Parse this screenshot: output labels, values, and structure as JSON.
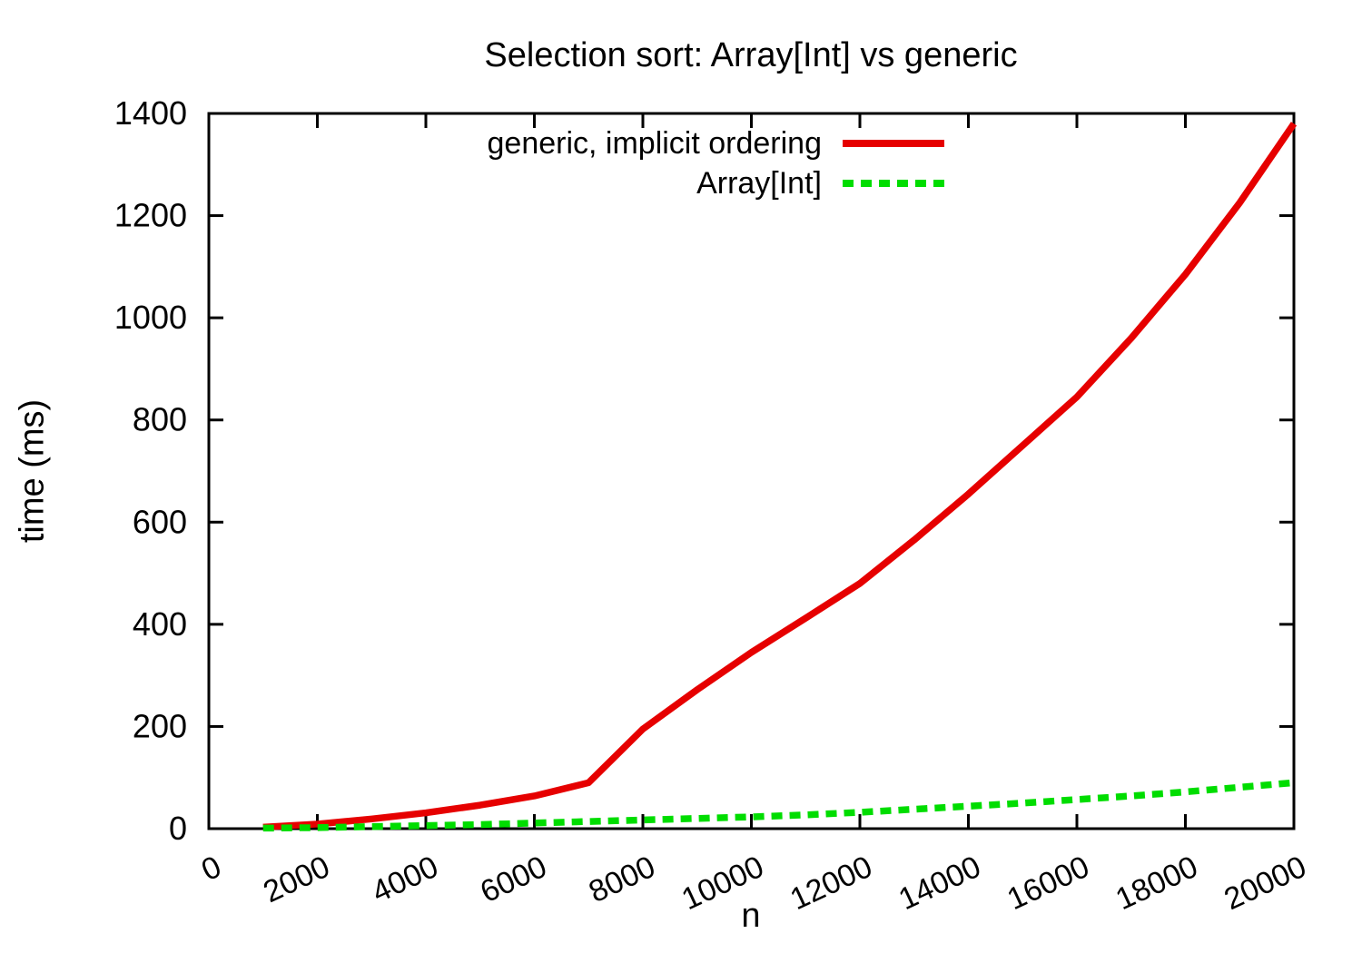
{
  "chart_data": {
    "type": "line",
    "title": "Selection sort: Array[Int] vs generic",
    "xlabel": "n",
    "ylabel": "time (ms)",
    "xlim": [
      0,
      20000
    ],
    "ylim": [
      0,
      1400
    ],
    "xticks": [
      0,
      2000,
      4000,
      6000,
      8000,
      10000,
      12000,
      14000,
      16000,
      18000,
      20000
    ],
    "yticks": [
      0,
      200,
      400,
      600,
      800,
      1000,
      1200,
      1400
    ],
    "grid": false,
    "legend_position": "top-right-inside",
    "x": [
      1000,
      2000,
      3000,
      4000,
      5000,
      6000,
      7000,
      8000,
      9000,
      10000,
      11000,
      12000,
      13000,
      14000,
      15000,
      16000,
      17000,
      18000,
      19000,
      20000
    ],
    "series": [
      {
        "name": "generic, implicit ordering",
        "color": "#e60000",
        "style": "solid",
        "values": [
          3,
          9,
          19,
          31,
          46,
          64,
          90,
          195,
          272,
          345,
          412,
          480,
          565,
          655,
          750,
          845,
          960,
          1085,
          1225,
          1380
        ]
      },
      {
        "name": "Array[Int]",
        "color": "#00dd00",
        "style": "dashed",
        "values": [
          1,
          2,
          4,
          6,
          8,
          11,
          14,
          17,
          20,
          23,
          27,
          32,
          38,
          44,
          50,
          57,
          64,
          72,
          81,
          90
        ]
      }
    ],
    "axis_color": "#000000",
    "text_color": "#000000"
  }
}
